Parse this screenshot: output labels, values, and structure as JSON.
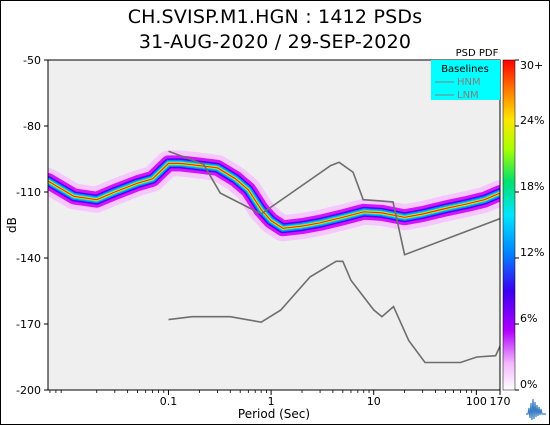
{
  "title_line1": "CH.SVISP.M1.HGN : 1412 PSDs",
  "title_line2": "31-AUG-2020 / 29-SEP-2020",
  "chart_data": {
    "type": "heatmap",
    "title": "CH.SVISP.M1.HGN : 1412 PSDs",
    "subtitle": "31-AUG-2020 / 29-SEP-2020",
    "xlabel": "Period (Sec)",
    "ylabel": "dB",
    "x_scale": "log",
    "xlim": [
      0.0067,
      170
    ],
    "ylim": [
      -200,
      -50
    ],
    "x_ticks": [
      0.1,
      1,
      10,
      100,
      170
    ],
    "x_tick_labels": [
      "0.1",
      "1",
      "10",
      "100",
      "170"
    ],
    "y_ticks": [
      -50,
      -80,
      -110,
      -140,
      -170,
      -200
    ],
    "y_tick_labels": [
      "-50",
      "-80",
      "-110",
      "-140",
      "-170",
      "-200"
    ],
    "colorbar": {
      "label": "PSD PDF",
      "min": 0,
      "max": 30,
      "ticks": [
        "0%",
        "6%",
        "12%",
        "18%",
        "24%",
        "30+"
      ]
    },
    "legend": {
      "title": "Baselines",
      "placement": "top-right",
      "entries": [
        "HNM",
        "LNM"
      ]
    },
    "series": [
      {
        "name": "HNM",
        "x": [
          0.1,
          0.22,
          0.32,
          0.8,
          3.8,
          4.6,
          6.3,
          7.9,
          15.4,
          20,
          354
        ],
        "y": [
          -91.5,
          -97.4,
          -110.5,
          -120.0,
          -98.0,
          -96.5,
          -101.0,
          -113.5,
          -114.5,
          -138.5,
          -116.5
        ]
      },
      {
        "name": "LNM",
        "x": [
          0.1,
          0.17,
          0.4,
          0.8,
          1.24,
          2.4,
          4.3,
          5.0,
          6.0,
          10.0,
          12.0,
          15.6,
          21.9,
          31.6,
          45.0,
          70.0,
          101,
          154,
          328,
          600
        ],
        "y": [
          -168.0,
          -166.7,
          -166.7,
          -169.2,
          -163.7,
          -148.6,
          -141.5,
          -141.5,
          -150.2,
          -163.6,
          -166.7,
          -162.1,
          -177.5,
          -187.5,
          -187.5,
          -187.5,
          -185.0,
          -184.4,
          -151.5,
          -162.1
        ]
      }
    ],
    "pdf_ridge": {
      "x": [
        0.0067,
        0.012,
        0.02,
        0.03,
        0.05,
        0.07,
        0.1,
        0.13,
        0.2,
        0.3,
        0.45,
        0.6,
        0.8,
        1.0,
        1.3,
        2.0,
        3.0,
        5.0,
        8.0,
        12.0,
        20.0,
        30.0,
        50.0,
        80.0,
        120.0,
        170.0
      ],
      "y": [
        -105.0,
        -112.0,
        -113.5,
        -110.0,
        -106.0,
        -104.0,
        -97.0,
        -97.0,
        -98.0,
        -99.0,
        -104.0,
        -109.0,
        -118.0,
        -123.0,
        -126.5,
        -125.5,
        -124.0,
        -121.5,
        -119.0,
        -119.5,
        -121.5,
        -120.0,
        -117.5,
        -115.5,
        -113.5,
        -110.5
      ]
    }
  }
}
